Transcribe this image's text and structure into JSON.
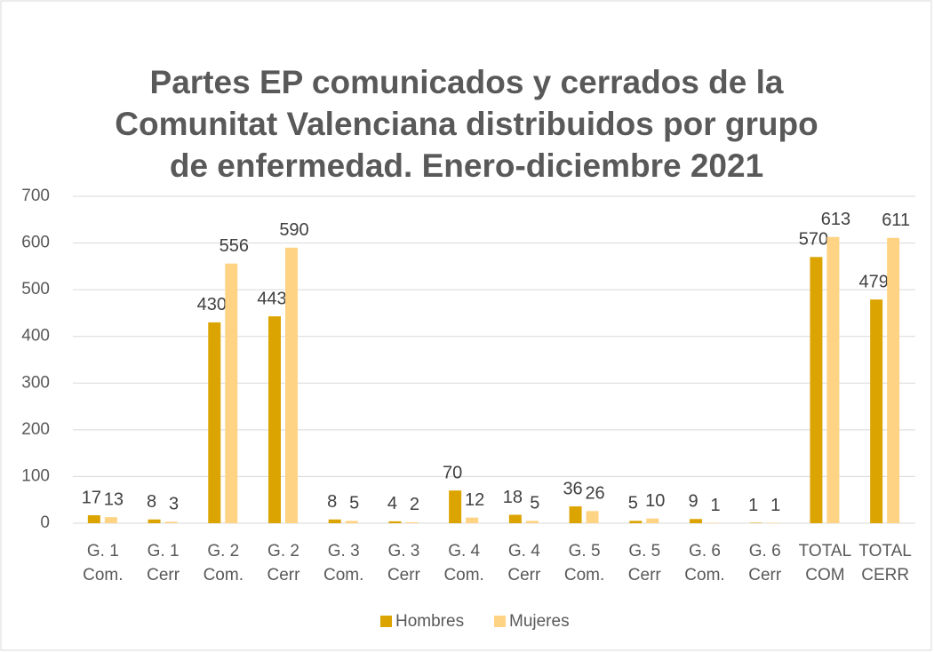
{
  "chart_data": {
    "type": "bar",
    "title": [
      "Partes EP comunicados y cerrados de la",
      "Comunitat Valenciana distribuidos por grupo",
      "de enfermedad. Enero-diciembre 2021"
    ],
    "categories": [
      [
        "G. 1",
        "Com."
      ],
      [
        "G. 1",
        "Cerr"
      ],
      [
        "G. 2",
        "Com."
      ],
      [
        "G.  2",
        "Cerr"
      ],
      [
        "G. 3",
        "Com."
      ],
      [
        "G. 3",
        "Cerr"
      ],
      [
        "G. 4",
        "Com."
      ],
      [
        "G. 4",
        "Cerr"
      ],
      [
        "G. 5",
        "Com."
      ],
      [
        "G. 5",
        "Cerr"
      ],
      [
        "G. 6",
        "Com."
      ],
      [
        "G. 6",
        "Cerr"
      ],
      [
        "TOTAL",
        "COM"
      ],
      [
        "TOTAL",
        "CERR"
      ]
    ],
    "series": [
      {
        "name": "Hombres",
        "color": "#dca400",
        "values": [
          17,
          8,
          430,
          443,
          8,
          4,
          70,
          18,
          36,
          5,
          9,
          1,
          570,
          479
        ]
      },
      {
        "name": "Mujeres",
        "color": "#ffd384",
        "values": [
          13,
          3,
          556,
          590,
          5,
          2,
          12,
          5,
          26,
          10,
          1,
          1,
          613,
          611
        ]
      }
    ],
    "ylim": [
      0,
      700
    ],
    "yticks": [
      0,
      100,
      200,
      300,
      400,
      500,
      600,
      700
    ],
    "grid": true,
    "legend": "bottom"
  }
}
